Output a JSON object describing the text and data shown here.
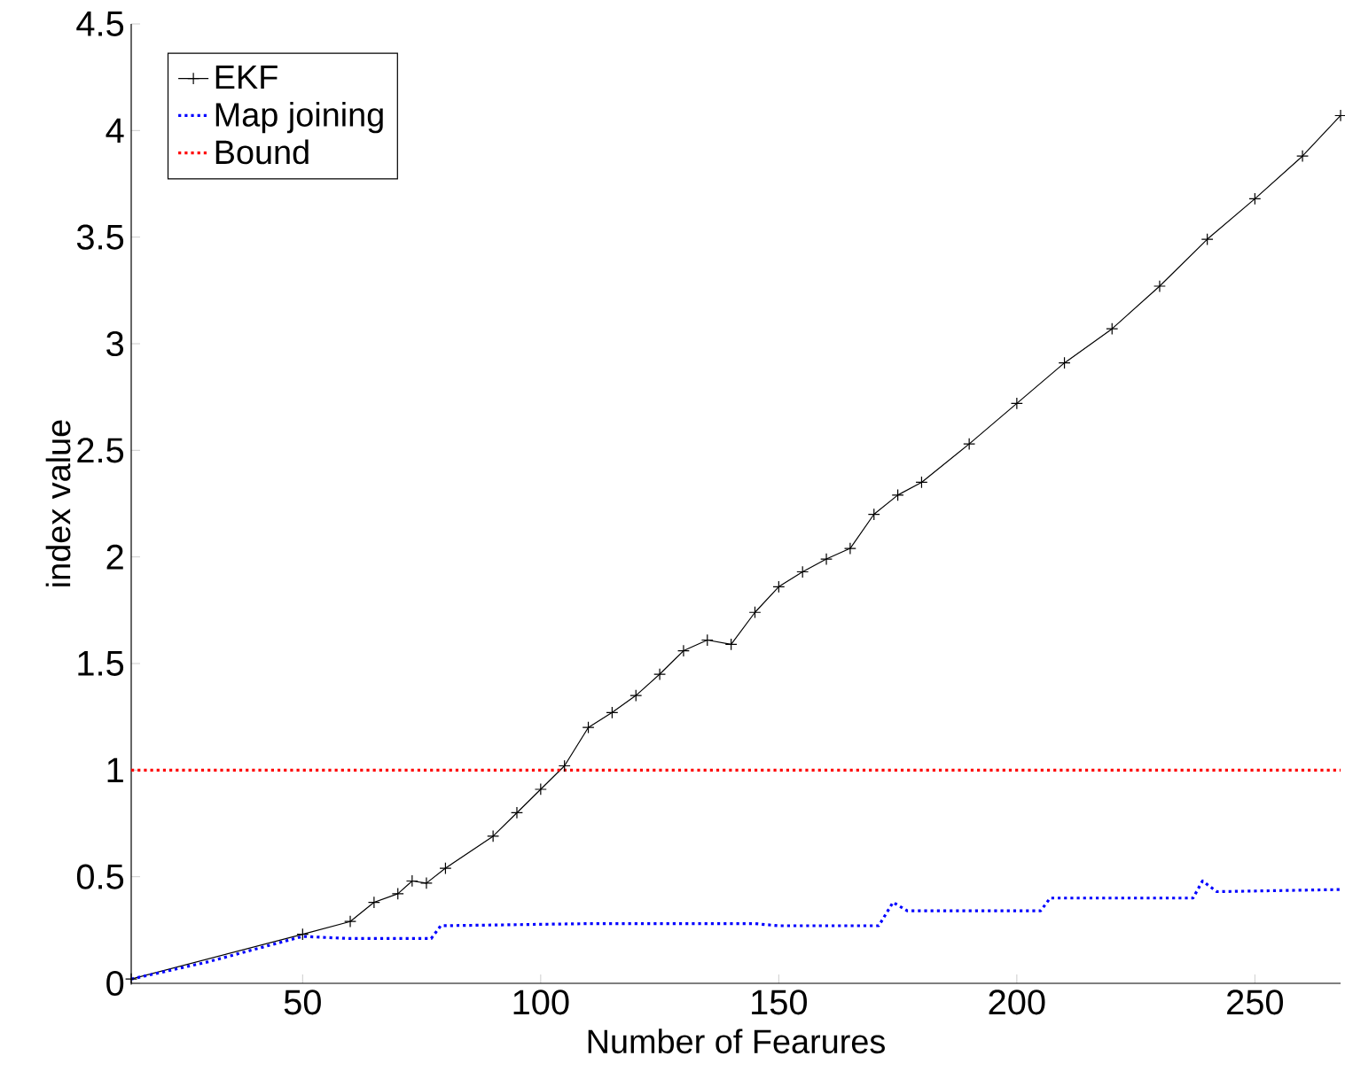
{
  "chart_data": {
    "type": "line",
    "xlabel": "Number of Fearures",
    "ylabel": "index value",
    "xlim": [
      14,
      268
    ],
    "ylim": [
      0,
      4.5
    ],
    "xticks": [
      50,
      100,
      150,
      200,
      250
    ],
    "yticks": [
      0,
      0.5,
      1,
      1.5,
      2,
      2.5,
      3,
      3.5,
      4,
      4.5
    ],
    "legend": "top left",
    "grid": false,
    "series": [
      {
        "name": "EKF",
        "color": "#000000",
        "marker": "cross",
        "line_style": "solid",
        "x": [
          14,
          50,
          60,
          65,
          70,
          73,
          76,
          80,
          90,
          95,
          100,
          105,
          110,
          115,
          120,
          125,
          130,
          135,
          140,
          145,
          150,
          155,
          160,
          165,
          170,
          175,
          180,
          190,
          200,
          210,
          220,
          230,
          240,
          250,
          260,
          268
        ],
        "values": [
          0.02,
          0.23,
          0.29,
          0.38,
          0.42,
          0.48,
          0.47,
          0.54,
          0.69,
          0.8,
          0.91,
          1.02,
          1.2,
          1.27,
          1.35,
          1.45,
          1.56,
          1.61,
          1.59,
          1.74,
          1.86,
          1.93,
          1.99,
          2.04,
          2.2,
          2.29,
          2.35,
          2.53,
          2.72,
          2.91,
          3.07,
          3.27,
          3.49,
          3.68,
          3.88,
          4.07
        ]
      },
      {
        "name": "Map joining",
        "color": "#0000ff",
        "marker": "none",
        "line_style": "dotted",
        "x": [
          14,
          30,
          50,
          60,
          77,
          79,
          110,
          145,
          150,
          171,
          174,
          177,
          205,
          207,
          237,
          239,
          242,
          268
        ],
        "values": [
          0.02,
          0.1,
          0.22,
          0.21,
          0.21,
          0.27,
          0.28,
          0.28,
          0.27,
          0.27,
          0.38,
          0.34,
          0.34,
          0.4,
          0.4,
          0.48,
          0.43,
          0.44
        ]
      },
      {
        "name": "Bound",
        "color": "#ff0000",
        "marker": "none",
        "line_style": "dotted",
        "x": [
          14,
          268
        ],
        "values": [
          1,
          1
        ]
      }
    ]
  }
}
